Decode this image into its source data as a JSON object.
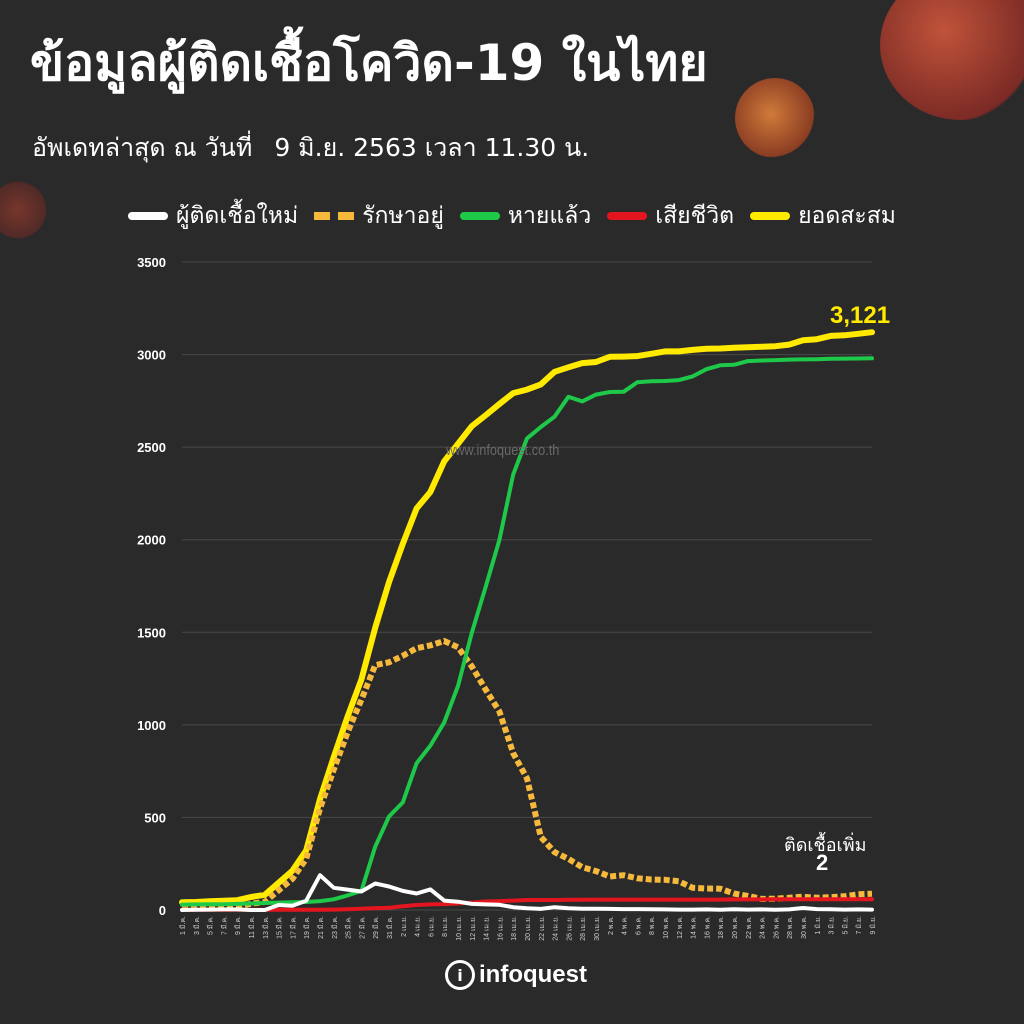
{
  "header": {
    "title": "ข้อมูลผู้ติดเชื้อโควิด-19 ในไทย",
    "update_label": "อัพเดทล่าสุด ณ วันที่",
    "update_date": "9 มิ.ย. 2563 เวลา 11.30 น."
  },
  "legend": [
    {
      "label": "ผู้ติดเชื้อใหม่",
      "color": "#ffffff",
      "style": "solid"
    },
    {
      "label": "รักษาอยู่",
      "color": "#f6b93b",
      "style": "dashed"
    },
    {
      "label": "หายแล้ว",
      "color": "#1ec94a",
      "style": "solid"
    },
    {
      "label": "เสียชีวิต",
      "color": "#e3161f",
      "style": "solid"
    },
    {
      "label": "ยอดสะสม",
      "color": "#ffea00",
      "style": "solid"
    }
  ],
  "watermark": "www.infoquest.co.th",
  "logo": {
    "text": "infoquest",
    "mark": "i"
  },
  "annotations": {
    "final_total": "3,121",
    "new_cases_label": "ติดเชื้อเพิ่ม",
    "new_cases_value": "2"
  },
  "chart_data": {
    "type": "line",
    "ylim": [
      0,
      3500
    ],
    "yticks": [
      "0",
      "500",
      "1000",
      "1500",
      "2000",
      "2500",
      "3000",
      "3500"
    ],
    "grid": true,
    "legend_position": "top",
    "x_labels": [
      "1 มี.ค.",
      "3 มี.ค.",
      "5 มี.ค.",
      "7 มี.ค.",
      "9 มี.ค.",
      "11 มี.ค.",
      "13 มี.ค.",
      "15 มี.ค.",
      "17 มี.ค.",
      "19 มี.ค.",
      "21 มี.ค.",
      "23 มี.ค.",
      "25 มี.ค.",
      "27 มี.ค.",
      "29 มี.ค.",
      "31 มี.ค.",
      "2 เม.ย.",
      "4 เม.ย.",
      "6 เม.ย.",
      "8 เม.ย.",
      "10 เม.ย.",
      "12 เม.ย.",
      "14 เม.ย.",
      "16 เม.ย.",
      "18 เม.ย.",
      "20 เม.ย.",
      "22 เม.ย.",
      "24 เม.ย.",
      "26 เม.ย.",
      "28 เม.ย.",
      "30 เม.ย.",
      "2 พ.ค.",
      "4 พ.ค.",
      "6 พ.ค.",
      "8 พ.ค.",
      "10 พ.ค.",
      "12 พ.ค.",
      "14 พ.ค.",
      "16 พ.ค.",
      "18 พ.ค.",
      "20 พ.ค.",
      "22 พ.ค.",
      "24 พ.ค.",
      "26 พ.ค.",
      "28 พ.ค.",
      "30 พ.ค.",
      "1 มิ.ย.",
      "3 มิ.ย.",
      "5 มิ.ย.",
      "7 มิ.ย.",
      "9 มิ.ย."
    ],
    "series": [
      {
        "name": "ยอดสะสม",
        "color": "#ffea00",
        "values": [
          42,
          43,
          47,
          50,
          53,
          70,
          82,
          147,
          212,
          322,
          599,
          827,
          1045,
          1245,
          1524,
          1771,
          1978,
          2169,
          2258,
          2423,
          2518,
          2613,
          2672,
          2733,
          2792,
          2811,
          2839,
          2907,
          2931,
          2954,
          2960,
          2988,
          2989,
          2992,
          3004,
          3017,
          3017,
          3025,
          3031,
          3033,
          3037,
          3040,
          3042,
          3045,
          3054,
          3077,
          3083,
          3101,
          3104,
          3112,
          3121
        ]
      },
      {
        "name": "รักษาอยู่",
        "color": "#f6b93b",
        "values": [
          12,
          13,
          15,
          19,
          19,
          34,
          43,
          106,
          168,
          277,
          549,
          759,
          960,
          1136,
          1323,
          1338,
          1373,
          1414,
          1429,
          1453,
          1419,
          1316,
          1191,
          1072,
          847,
          710,
          395,
          312,
          276,
          231,
          210,
          181,
          188,
          171,
          165,
          163,
          155,
          120,
          116,
          115,
          89,
          76,
          60,
          61,
          66,
          72,
          66,
          69,
          74,
          85,
          88
        ]
      },
      {
        "name": "หายแล้ว",
        "color": "#1ec94a",
        "values": [
          29,
          30,
          31,
          31,
          33,
          35,
          38,
          40,
          42,
          43,
          48,
          58,
          79,
          103,
          342,
          505,
          581,
          793,
          888,
          1013,
          1210,
          1497,
          1744,
          1999,
          2352,
          2547,
          2609,
          2665,
          2772,
          2747,
          2784,
          2798,
          2799,
          2851,
          2856,
          2857,
          2862,
          2882,
          2921,
          2942,
          2945,
          2965,
          2968,
          2970,
          2973,
          2974,
          2975,
          2977,
          2978,
          2979,
          2980
        ]
      },
      {
        "name": "เสียชีวิต",
        "color": "#e3161f",
        "values": [
          1,
          1,
          1,
          1,
          1,
          1,
          1,
          1,
          1,
          1,
          1,
          2,
          4,
          7,
          10,
          12,
          20,
          27,
          30,
          32,
          35,
          40,
          46,
          48,
          51,
          54,
          54,
          54,
          55,
          55,
          56,
          56,
          56,
          56,
          56,
          56,
          56,
          56,
          56,
          56,
          57,
          57,
          57,
          58,
          58,
          58,
          58,
          58,
          58,
          58,
          58
        ]
      },
      {
        "name": "ผู้ติดเชื้อใหม่",
        "color": "#ffffff",
        "values": [
          0,
          1,
          2,
          3,
          3,
          0,
          0,
          27,
          23,
          50,
          188,
          120,
          110,
          100,
          143,
          127,
          103,
          89,
          111,
          51,
          45,
          33,
          30,
          28,
          15,
          9,
          6,
          15,
          9,
          7,
          7,
          6,
          5,
          5,
          4,
          3,
          2,
          2,
          3,
          1,
          4,
          2,
          3,
          1,
          3,
          11,
          5,
          4,
          2,
          3,
          2
        ]
      }
    ]
  }
}
